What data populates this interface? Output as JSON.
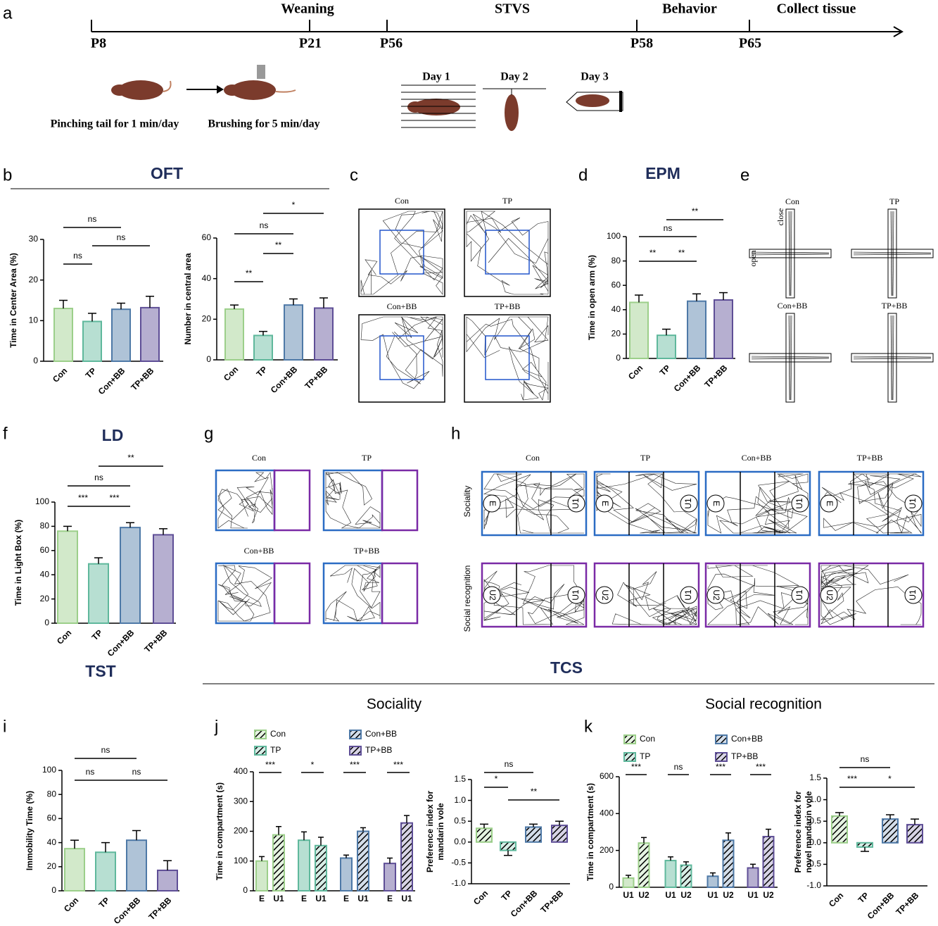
{
  "panel_letters": [
    "a",
    "b",
    "c",
    "d",
    "e",
    "f",
    "g",
    "h",
    "i",
    "j",
    "k"
  ],
  "timeline": {
    "points": [
      "P8",
      "P21",
      "P56",
      "P58",
      "P65"
    ],
    "stages": [
      "Weaning",
      "STVS",
      "Behavior",
      "Collect tissue"
    ],
    "captions": [
      "Pinching tail for 1 min/day",
      "Brushing for 5 min/day"
    ],
    "days": [
      "Day 1",
      "Day 2",
      "Day 3"
    ]
  },
  "headings": {
    "oft": "OFT",
    "epm": "EPM",
    "ld": "LD",
    "tst": "TST",
    "tcs": "TCS",
    "sociality": "Sociality",
    "social_recognition": "Social recognition"
  },
  "tracks": {
    "labels": [
      "Con",
      "TP",
      "Con+BB",
      "TP+BB"
    ],
    "arms": [
      "close",
      "open"
    ],
    "rows": [
      "Sociality",
      "Social recognition"
    ],
    "chambers": [
      "E",
      "U1",
      "U2"
    ]
  },
  "chart_data": [
    {
      "type": "bar",
      "ylabel": "Time in Center Area (%)",
      "categories": [
        "Con",
        "TP",
        "Con+BB",
        "TP+BB"
      ],
      "values": [
        13,
        9.8,
        12.8,
        13.2
      ],
      "errors": [
        2,
        2,
        1.5,
        2.8
      ],
      "colors": [
        "#9ccf8a",
        "#5fb89c",
        "#4e79a7",
        "#5e4e96"
      ],
      "ylim": [
        0,
        30
      ],
      "yticks": [
        0,
        10,
        20,
        30
      ],
      "annotations": [
        {
          "label": "ns",
          "between": [
            "Con",
            "TP"
          ]
        },
        {
          "label": "ns",
          "between": [
            "TP",
            "TP+BB"
          ]
        },
        {
          "label": "ns",
          "between": [
            "Con",
            "Con+BB"
          ]
        }
      ]
    },
    {
      "type": "bar",
      "ylabel": "Number in central area",
      "categories": [
        "Con",
        "TP",
        "Con+BB",
        "TP+BB"
      ],
      "values": [
        25,
        12,
        27,
        25.5
      ],
      "errors": [
        2,
        2,
        3,
        5
      ],
      "colors": [
        "#9ccf8a",
        "#5fb89c",
        "#4e79a7",
        "#5e4e96"
      ],
      "ylim": [
        0,
        60
      ],
      "yticks": [
        0,
        20,
        40,
        60
      ],
      "annotations": [
        {
          "label": "**",
          "between": [
            "Con",
            "TP"
          ]
        },
        {
          "label": "**",
          "between": [
            "TP",
            "Con+BB"
          ]
        },
        {
          "label": "ns",
          "between": [
            "Con",
            "Con+BB"
          ]
        },
        {
          "label": "*",
          "between": [
            "TP",
            "TP+BB"
          ]
        }
      ]
    },
    {
      "type": "bar",
      "ylabel": "Time in open arm (%)",
      "categories": [
        "Con",
        "TP",
        "Con+BB",
        "TP+BB"
      ],
      "values": [
        46,
        19,
        47,
        48
      ],
      "errors": [
        6,
        5,
        6,
        6
      ],
      "colors": [
        "#9ccf8a",
        "#5fb89c",
        "#4e79a7",
        "#5e4e96"
      ],
      "ylim": [
        0,
        100
      ],
      "yticks": [
        0,
        20,
        40,
        60,
        80,
        100
      ],
      "annotations": [
        {
          "label": "**",
          "between": [
            "Con",
            "TP"
          ]
        },
        {
          "label": "**",
          "between": [
            "TP",
            "Con+BB"
          ]
        },
        {
          "label": "ns",
          "between": [
            "Con",
            "Con+BB"
          ]
        },
        {
          "label": "**",
          "between": [
            "TP",
            "TP+BB"
          ]
        }
      ]
    },
    {
      "type": "bar",
      "ylabel": "Time in Light Box (%)",
      "categories": [
        "Con",
        "TP",
        "Con+BB",
        "TP+BB"
      ],
      "values": [
        76,
        49,
        79,
        73
      ],
      "errors": [
        4,
        5,
        4,
        5
      ],
      "colors": [
        "#9ccf8a",
        "#5fb89c",
        "#4e79a7",
        "#5e4e96"
      ],
      "ylim": [
        0,
        100
      ],
      "yticks": [
        0,
        20,
        40,
        60,
        80,
        100
      ],
      "annotations": [
        {
          "label": "***",
          "between": [
            "Con",
            "TP"
          ]
        },
        {
          "label": "***",
          "between": [
            "TP",
            "Con+BB"
          ]
        },
        {
          "label": "ns",
          "between": [
            "Con",
            "Con+BB"
          ]
        },
        {
          "label": "**",
          "between": [
            "TP",
            "TP+BB"
          ]
        }
      ]
    },
    {
      "type": "bar",
      "ylabel": "Immobility Time (%)",
      "categories": [
        "Con",
        "TP",
        "Con+BB",
        "TP+BB"
      ],
      "values": [
        35,
        32,
        42,
        17
      ],
      "errors": [
        7,
        8,
        8,
        8
      ],
      "colors": [
        "#9ccf8a",
        "#5fb89c",
        "#4e79a7",
        "#5e4e96"
      ],
      "ylim": [
        0,
        100
      ],
      "yticks": [
        0,
        20,
        40,
        60,
        80,
        100
      ],
      "annotations": [
        {
          "label": "ns",
          "between": [
            "Con",
            "TP"
          ]
        },
        {
          "label": "ns",
          "between": [
            "TP",
            "TP+BB"
          ]
        },
        {
          "label": "ns",
          "between": [
            "Con",
            "Con+BB"
          ]
        }
      ]
    },
    {
      "type": "grouped",
      "ylabel": "Time in compartment (s)",
      "categories": [
        "Con",
        "TP",
        "Con+BB",
        "TP+BB"
      ],
      "colors": [
        "#9ccf8a",
        "#5fb89c",
        "#4e79a7",
        "#5e4e96"
      ],
      "series": [
        {
          "name": "E",
          "values": [
            100,
            170,
            110,
            92
          ],
          "errors": [
            15,
            28,
            10,
            18
          ]
        },
        {
          "name": "U1",
          "values": [
            188,
            152,
            200,
            228
          ],
          "errors": [
            28,
            28,
            12,
            25
          ]
        }
      ],
      "ylim": [
        0,
        400
      ],
      "yticks": [
        0,
        100,
        200,
        300,
        400
      ],
      "annotations": [
        {
          "label": "***",
          "group": "Con"
        },
        {
          "label": "*",
          "group": "TP"
        },
        {
          "label": "***",
          "group": "Con+BB"
        },
        {
          "label": "***",
          "group": "TP+BB"
        }
      ]
    },
    {
      "type": "bar",
      "ylabel": [
        "Preference index for",
        "mandarin vole"
      ],
      "categories": [
        "Con",
        "TP",
        "Con+BB",
        "TP+BB"
      ],
      "values": [
        0.33,
        -0.2,
        0.36,
        0.4
      ],
      "errors": [
        0.1,
        0.12,
        0.07,
        0.1
      ],
      "colors": [
        "#9ccf8a",
        "#5fb89c",
        "#4e79a7",
        "#5e4e96"
      ],
      "hatch": true,
      "ylim": [
        -1,
        1.5
      ],
      "yticks": [
        {
          "value": -1,
          "label": "-1.0"
        },
        -0.5,
        {
          "value": 0,
          "label": "0.0"
        },
        0.5,
        {
          "value": 1,
          "label": "1.0"
        },
        1.5
      ],
      "annotations": [
        {
          "label": "*",
          "between": [
            "Con",
            "TP"
          ]
        },
        {
          "label": "**",
          "between": [
            "TP",
            "TP+BB"
          ]
        },
        {
          "label": "ns",
          "between": [
            "Con",
            "Con+BB"
          ]
        }
      ]
    },
    {
      "type": "grouped",
      "ylabel": "Time in compartment (s)",
      "categories": [
        "Con",
        "TP",
        "Con+BB",
        "TP+BB"
      ],
      "colors": [
        "#9ccf8a",
        "#5fb89c",
        "#4e79a7",
        "#5e4e96"
      ],
      "series": [
        {
          "name": "U1",
          "values": [
            50,
            145,
            60,
            105
          ],
          "errors": [
            15,
            20,
            18,
            20
          ]
        },
        {
          "name": "U2",
          "values": [
            240,
            120,
            255,
            275
          ],
          "errors": [
            30,
            18,
            40,
            40
          ]
        }
      ],
      "ylim": [
        0,
        600
      ],
      "yticks": [
        0,
        200,
        400,
        600
      ],
      "annotations": [
        {
          "label": "***",
          "group": "Con"
        },
        {
          "label": "ns",
          "group": "TP"
        },
        {
          "label": "***",
          "group": "Con+BB"
        },
        {
          "label": "***",
          "group": "TP+BB"
        }
      ]
    },
    {
      "type": "bar",
      "ylabel": [
        "Preference index for",
        "novel mandarin vole"
      ],
      "categories": [
        "Con",
        "TP",
        "Con+BB",
        "TP+BB"
      ],
      "values": [
        0.62,
        -0.1,
        0.55,
        0.42
      ],
      "errors": [
        0.08,
        0.1,
        0.1,
        0.13
      ],
      "colors": [
        "#9ccf8a",
        "#5fb89c",
        "#4e79a7",
        "#5e4e96"
      ],
      "hatch": true,
      "ylim": [
        -1,
        1.5
      ],
      "yticks": [
        {
          "value": -1,
          "label": "-1.0"
        },
        -0.5,
        {
          "value": 0,
          "label": "0.0"
        },
        0.5,
        {
          "value": 1,
          "label": "1.0"
        },
        1.5
      ],
      "annotations": [
        {
          "label": "***",
          "between": [
            "Con",
            "TP"
          ]
        },
        {
          "label": "*",
          "between": [
            "TP",
            "TP+BB"
          ]
        },
        {
          "label": "ns",
          "between": [
            "Con",
            "Con+BB"
          ]
        }
      ]
    }
  ]
}
